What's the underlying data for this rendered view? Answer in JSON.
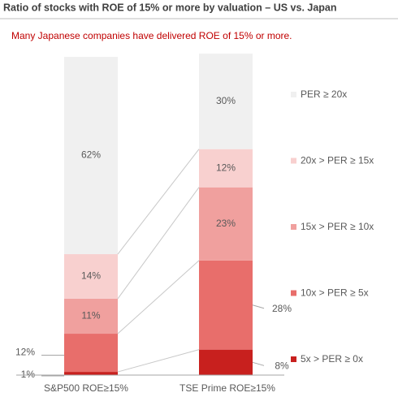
{
  "chart_data": {
    "type": "stacked_bar",
    "title": "Ratio of stocks with ROE of 15% or more by valuation – US vs. Japan",
    "subtitle": "Many Japanese companies have delivered ROE of 15% or more.",
    "categories": [
      "S&P500 ROE≥15%",
      "TSE Prime ROE≥15%"
    ],
    "ylim": [
      0,
      100
    ],
    "series": [
      {
        "name": "5x > PER ≥ 0x",
        "color": "#c8201e",
        "values": [
          1,
          8
        ],
        "value_labels": [
          "1%",
          "8%"
        ]
      },
      {
        "name": "10x > PER ≥ 5x",
        "color": "#e86e6b",
        "values": [
          12,
          28
        ],
        "value_labels": [
          "12%",
          "28%"
        ]
      },
      {
        "name": "15x > PER ≥ 10x",
        "color": "#f0a09e",
        "values": [
          11,
          23
        ],
        "value_labels": [
          "11%",
          "23%"
        ]
      },
      {
        "name": "20x > PER ≥ 15x",
        "color": "#f8d0cf",
        "values": [
          14,
          12
        ],
        "value_labels": [
          "14%",
          "12%"
        ]
      },
      {
        "name": "PER ≥ 20x",
        "color": "#f0f0f0",
        "values": [
          62,
          30
        ],
        "value_labels": [
          "62%",
          "30%"
        ]
      }
    ]
  }
}
